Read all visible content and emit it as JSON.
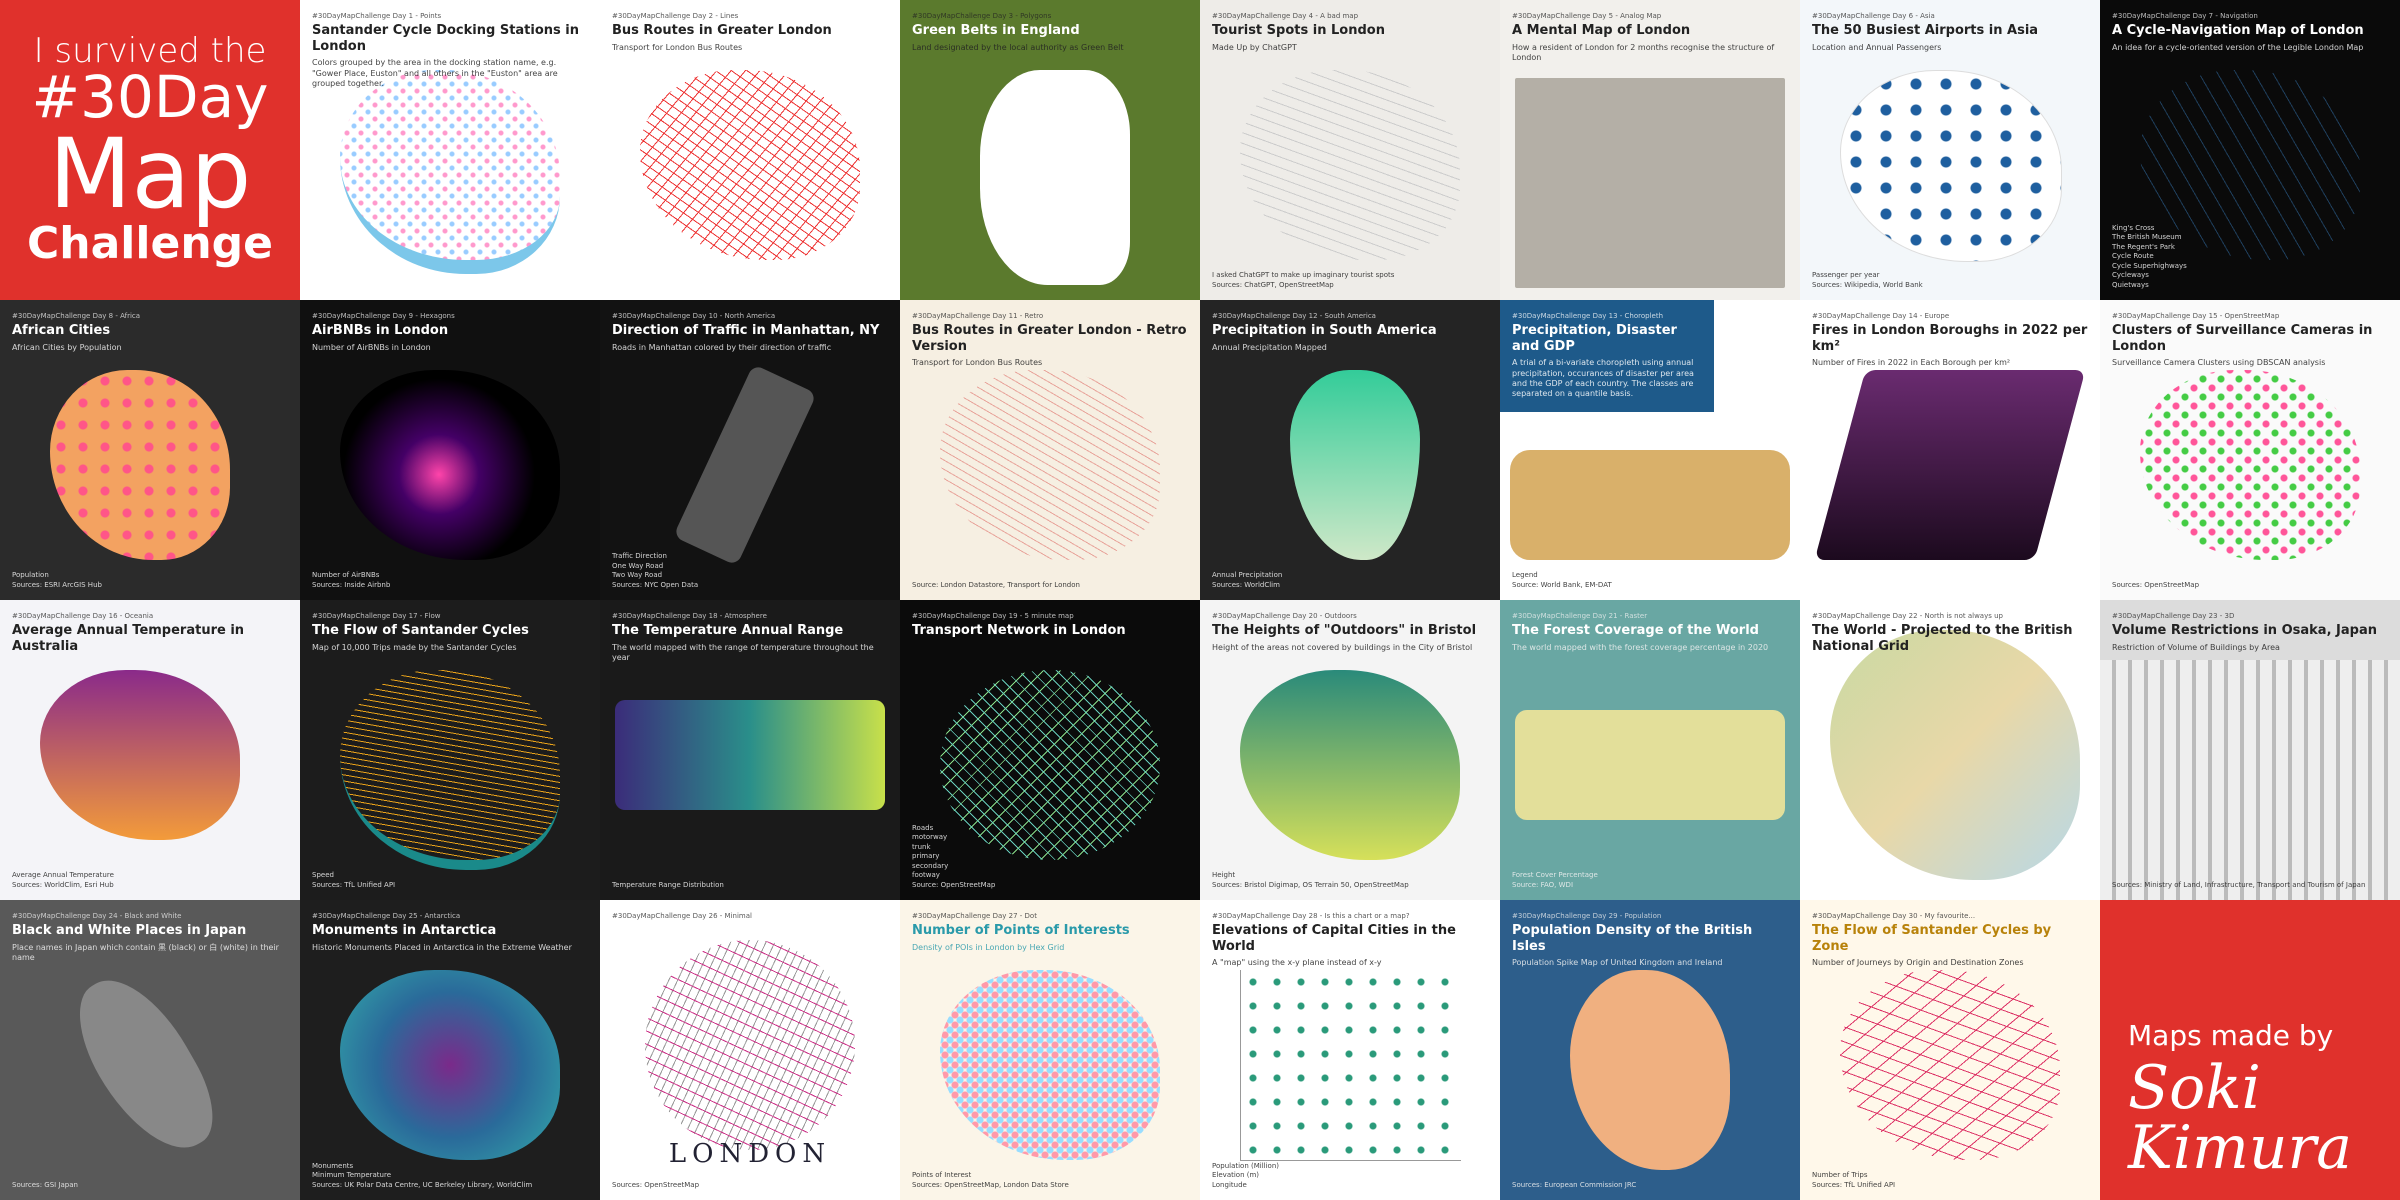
{
  "tiles": [
    {
      "lines": [
        "I survived the",
        "#30Day",
        "Map",
        "Challenge"
      ]
    },
    {
      "tag": "#30DayMapChallenge Day 1 - Points",
      "title": "Santander Cycle Docking Stations in London",
      "subtitle": "Colors grouped by the area in the docking station name, e.g. \"Gower Place, Euston\" and all others in the \"Euston\" area are grouped together."
    },
    {
      "tag": "#30DayMapChallenge Day 2 - Lines",
      "title": "Bus Routes in Greater London",
      "subtitle": "Transport for London Bus Routes"
    },
    {
      "tag": "#30DayMapChallenge Day 3 - Polygons",
      "title": "Green Belts in England",
      "subtitle": "Land designated by the local authority as Green Belt"
    },
    {
      "tag": "#30DayMapChallenge Day 4 - A bad map",
      "title": "Tourist Spots in London",
      "subtitle": "Made Up by ChatGPT",
      "notes": [
        "I asked ChatGPT to make up imaginary tourist spots",
        "Sources: ChatGPT, OpenStreetMap"
      ]
    },
    {
      "tag": "#30DayMapChallenge Day 5 - Analog Map",
      "title": "A Mental Map of London",
      "subtitle": "How a resident of London for 2 months recognise the structure of London"
    },
    {
      "tag": "#30DayMapChallenge Day 6 - Asia",
      "title": "The 50 Busiest Airports in Asia",
      "subtitle": "Location and Annual Passengers",
      "notes": [
        "Passenger per year",
        "Sources: Wikipedia, World Bank"
      ]
    },
    {
      "tag": "#30DayMapChallenge Day 7 - Navigation",
      "title": "A Cycle-Navigation Map of London",
      "subtitle": "An idea for a cycle-oriented version of the Legible London Map",
      "notes": [
        "King's Cross",
        "The British Museum",
        "The Regent's Park",
        "Cycle Route",
        "Cycle Superhighways",
        "Cycleways",
        "Quietways"
      ]
    },
    {
      "tag": "#30DayMapChallenge Day 8 - Africa",
      "title": "African Cities",
      "subtitle": "African Cities by Population",
      "notes": [
        "Population",
        "Sources: ESRI ArcGIS Hub"
      ]
    },
    {
      "tag": "#30DayMapChallenge Day 9 - Hexagons",
      "title": "AirBNBs in London",
      "subtitle": "Number of AirBNBs in London",
      "notes": [
        "Number of AirBNBs",
        "Sources: Inside Airbnb"
      ]
    },
    {
      "tag": "#30DayMapChallenge Day 10 - North America",
      "title": "Direction of Traffic in Manhattan, NY",
      "subtitle": "Roads in Manhattan colored by their direction of traffic",
      "notes": [
        "Traffic Direction",
        "One Way Road",
        "Two Way Road",
        "Sources: NYC Open Data"
      ]
    },
    {
      "tag": "#30DayMapChallenge Day 11 - Retro",
      "title": "Bus Routes in Greater London - Retro Version",
      "subtitle": "Transport for London Bus Routes",
      "notes": [
        "Source: London Datastore, Transport for London"
      ]
    },
    {
      "tag": "#30DayMapChallenge Day 12 - South America",
      "title": "Precipitation in South America",
      "subtitle": "Annual Precipitation Mapped",
      "notes": [
        "Annual Precipitation",
        "Sources: WorldClim"
      ]
    },
    {
      "tag": "#30DayMapChallenge Day 13 - Choropleth",
      "title": "Precipitation, Disaster and GDP",
      "subtitle": "A trial of a bi-variate choropleth using annual precipitation, occurances of disaster per area and the GDP of each country. The classes are separated on a quantile basis.",
      "notes": [
        "Legend",
        "Source: World Bank, EM-DAT"
      ]
    },
    {
      "tag": "#30DayMapChallenge Day 14 - Europe",
      "title": "Fires in London Boroughs in 2022 per km²",
      "subtitle": "Number of Fires in 2022 in Each Borough per km²"
    },
    {
      "tag": "#30DayMapChallenge Day 15 - OpenStreetMap",
      "title": "Clusters of Surveillance Cameras in London",
      "subtitle": "Surveillance Camera Clusters using DBSCAN analysis",
      "notes": [
        "Sources: OpenStreetMap"
      ]
    },
    {
      "tag": "#30DayMapChallenge Day 16 - Oceania",
      "title": "Average Annual Temperature in Australia",
      "notes": [
        "Average Annual Temperature",
        "Sources: WorldClim, Esri Hub"
      ]
    },
    {
      "tag": "#30DayMapChallenge Day 17 - Flow",
      "title": "The Flow of Santander Cycles",
      "subtitle": "Map of 10,000 Trips made by the Santander Cycles",
      "notes": [
        "Speed",
        "Sources: TfL Unified API"
      ]
    },
    {
      "tag": "#30DayMapChallenge Day 18 - Atmosphere",
      "title": "The Temperature Annual Range",
      "subtitle": "The world mapped with the range of temperature throughout the year",
      "notes": [
        "Temperature Range Distribution"
      ]
    },
    {
      "tag": "#30DayMapChallenge Day 19 - 5 minute map",
      "title": "Transport Network in London",
      "notes": [
        "Roads",
        "motorway",
        "trunk",
        "primary",
        "secondary",
        "footway",
        "Source: OpenStreetMap"
      ]
    },
    {
      "tag": "#30DayMapChallenge Day 20 - Outdoors",
      "title": "The Heights of \"Outdoors\" in Bristol",
      "subtitle": "Height of the areas not covered by buildings in the City of Bristol",
      "notes": [
        "Height",
        "Sources: Bristol Digimap, OS Terrain 50, OpenStreetMap"
      ]
    },
    {
      "tag": "#30DayMapChallenge Day 21 - Raster",
      "title": "The Forest Coverage of the World",
      "subtitle": "The world mapped with the forest coverage percentage in 2020",
      "notes": [
        "Forest Cover Percentage",
        "Source: FAO, WDI"
      ]
    },
    {
      "tag": "#30DayMapChallenge Day 22 - North is not always up",
      "title": "The World - Projected to the British National Grid"
    },
    {
      "tag": "#30DayMapChallenge Day 23 - 3D",
      "title": "Volume Restrictions in Osaka, Japan",
      "subtitle": "Restriction of Volume of Buildings by Area",
      "notes": [
        "Sources: Ministry of Land, Infrastructure, Transport and Tourism of Japan"
      ]
    },
    {
      "tag": "#30DayMapChallenge Day 24 - Black and White",
      "title": "Black and White Places in Japan",
      "subtitle": "Place names in Japan which contain 黒 (black) or 白 (white) in their name",
      "notes": [
        "Sources: GSI Japan"
      ]
    },
    {
      "tag": "#30DayMapChallenge Day 25 - Antarctica",
      "title": "Monuments in Antarctica",
      "subtitle": "Historic Monuments Placed in Antarctica in the Extreme Weather",
      "notes": [
        "Monuments",
        "Minimum Temperature",
        "Sources: UK Polar Data Centre, UC Berkeley Library, WorldClim"
      ]
    },
    {
      "tag": "#30DayMapChallenge Day 26 - Minimal",
      "title": "LONDON",
      "notes": [
        "Sources: OpenStreetMap"
      ]
    },
    {
      "tag": "#30DayMapChallenge Day 27 - Dot",
      "title": "Number of Points of Interests",
      "subtitle": "Density of POIs in London by Hex Grid",
      "notes": [
        "Points of Interest",
        "Sources: OpenStreetMap, London Data Store"
      ]
    },
    {
      "tag": "#30DayMapChallenge Day 28 - Is this a chart or a map?",
      "title": "Elevations of Capital Cities in the World",
      "subtitle": "A \"map\" using the x-y plane instead of x-y",
      "notes": [
        "Population (Million)",
        "Elevation (m)",
        "Longitude"
      ]
    },
    {
      "tag": "#30DayMapChallenge Day 29 - Population",
      "title": "Population Density of the British Isles",
      "subtitle": "Population Spike Map of United Kingdom and Ireland",
      "notes": [
        "Sources: European Commission JRC"
      ]
    },
    {
      "tag": "#30DayMapChallenge Day 30 - My favourite...",
      "title": "The Flow of Santander Cycles by Zone",
      "subtitle": "Number of Journeys by Origin and Destination Zones",
      "notes": [
        "Number of Trips",
        "Sources: TfL Unified API"
      ]
    },
    {
      "lines": [
        "Maps made by",
        "Soki",
        "Kimura"
      ]
    }
  ]
}
